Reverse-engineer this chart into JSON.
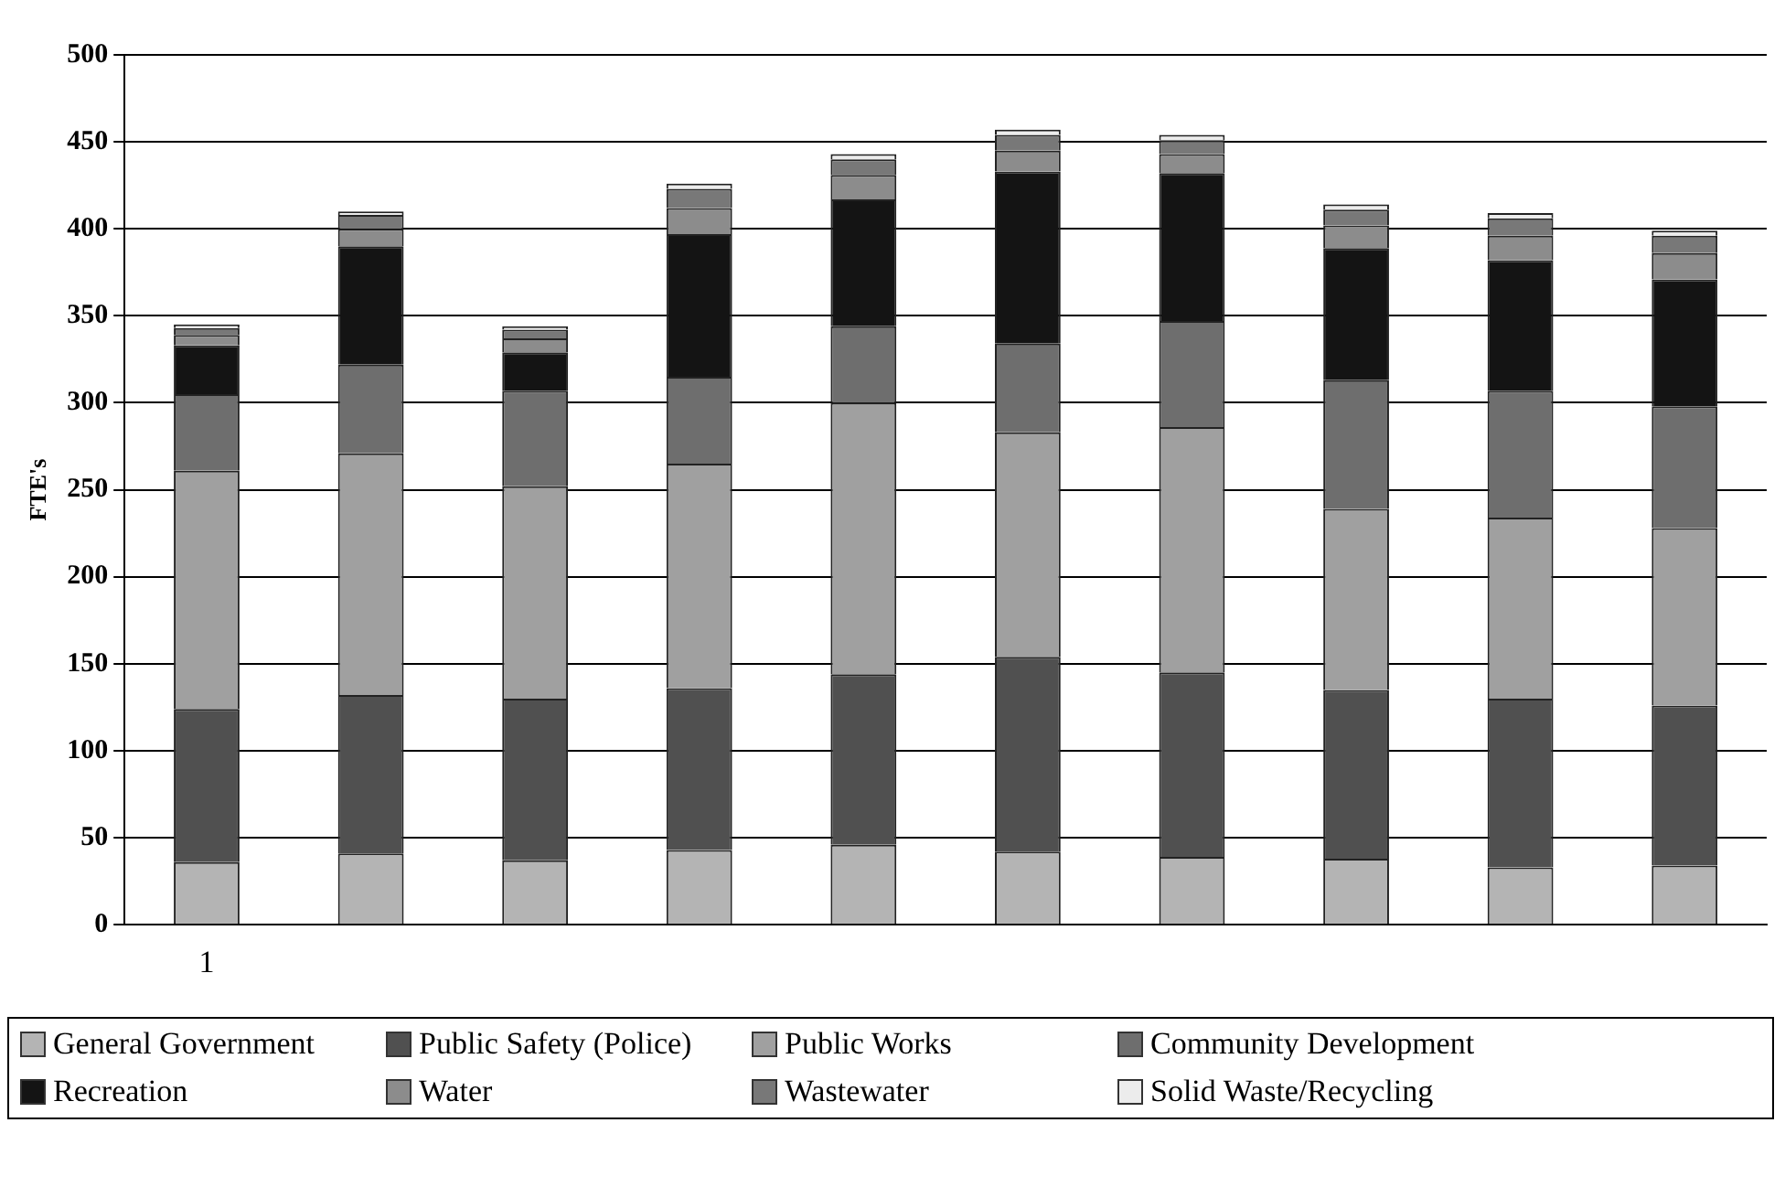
{
  "chart_data": {
    "type": "bar",
    "stacked": true,
    "ylabel": "FTE's",
    "categories": [
      "1",
      null,
      null,
      null,
      null,
      null,
      null,
      null,
      null,
      null
    ],
    "ylim": [
      0,
      500
    ],
    "yticks": [
      0,
      50,
      100,
      150,
      200,
      250,
      300,
      350,
      400,
      450,
      500
    ],
    "grid": "y",
    "legend": "bottom",
    "series": [
      {
        "name": "General Government",
        "color": "#b4b4b4",
        "values": [
          36,
          41,
          37,
          43,
          46,
          42,
          39,
          38,
          33,
          34
        ]
      },
      {
        "name": "Public Safety (Police)",
        "color": "#505050",
        "values": [
          88,
          91,
          93,
          93,
          98,
          112,
          106,
          97,
          97,
          92
        ]
      },
      {
        "name": "Public Works",
        "color": "#a0a0a0",
        "values": [
          137,
          139,
          122,
          129,
          156,
          129,
          141,
          104,
          104,
          102
        ]
      },
      {
        "name": "Community Development",
        "color": "#6e6e6e",
        "values": [
          44,
          51,
          55,
          50,
          44,
          51,
          61,
          74,
          73,
          70
        ]
      },
      {
        "name": "Recreation",
        "color": "#141414",
        "values": [
          28,
          68,
          22,
          82,
          73,
          99,
          85,
          76,
          75,
          73
        ]
      },
      {
        "name": "Water",
        "color": "#8c8c8c",
        "values": [
          6,
          10,
          8,
          15,
          14,
          12,
          11,
          13,
          14,
          15
        ]
      },
      {
        "name": "Wastewater",
        "color": "#787878",
        "values": [
          4,
          8,
          5,
          11,
          9,
          9,
          8,
          9,
          10,
          10
        ]
      },
      {
        "name": "Solid Waste/Recycling",
        "color": "#ececec",
        "values": [
          2,
          2,
          2,
          3,
          3,
          3,
          3,
          3,
          3,
          3
        ]
      }
    ]
  }
}
